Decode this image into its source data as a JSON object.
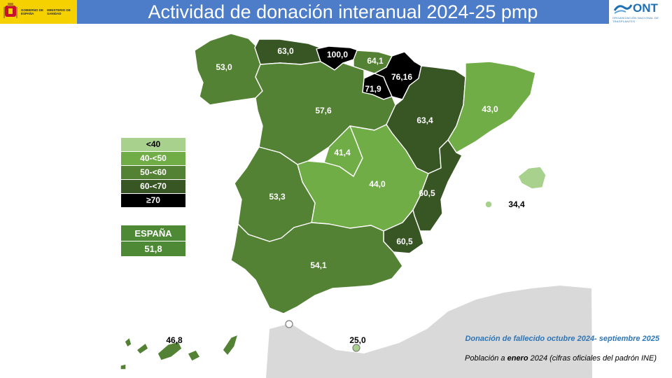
{
  "header": {
    "title": "Actividad de donación interanual 2024-25 pmp",
    "gov_logo_line1": "GOBIERNO DE ESPAÑA",
    "gov_logo_line2": "MINISTERIO DE SANIDAD",
    "ont_logo_name": "ONT",
    "ont_logo_subtitle": "ORGANIZACIÓN NACIONAL DE TRASPLANTES"
  },
  "colors": {
    "header_bg": "#4d7cc9",
    "lt40": "#a9d18e",
    "r40_50": "#70ad47",
    "r50_60": "#548235",
    "r60_70": "#375623",
    "ge70": "#000000",
    "spain_box": "#4e8a35",
    "neighbor_land": "#d9d9d9"
  },
  "legend": [
    {
      "label": "<40",
      "color": "#a9d18e"
    },
    {
      "label": "40-<50",
      "color": "#70ad47"
    },
    {
      "label": "50-<60",
      "color": "#548235"
    },
    {
      "label": "60-<70",
      "color": "#375623"
    },
    {
      "label": "≥70",
      "color": "#000000"
    }
  ],
  "spain": {
    "label": "ESPAÑA",
    "value": "51,8"
  },
  "regions": {
    "galicia": "53,0",
    "asturias": "63,0",
    "cantabria": "100,0",
    "pais_vasco": "64,1",
    "navarra": "76,16",
    "la_rioja": "71,9",
    "castilla_leon": "57,6",
    "aragon": "63,4",
    "cataluna": "43,0",
    "madrid": "41,4",
    "castilla_la_mancha": "44,0",
    "extremadura": "53,3",
    "valencia": "60,5",
    "murcia": "60,5",
    "andalucia": "54,1",
    "baleares": "34,4",
    "canarias": "46,8",
    "melilla": "25,0"
  },
  "notes": {
    "period": "Donación de fallecido octubre 2024- septiembre  2025",
    "population_prefix": "Población a ",
    "population_bold": "enero",
    "population_suffix": " 2024 (cifras oficiales del padrón INE)"
  }
}
